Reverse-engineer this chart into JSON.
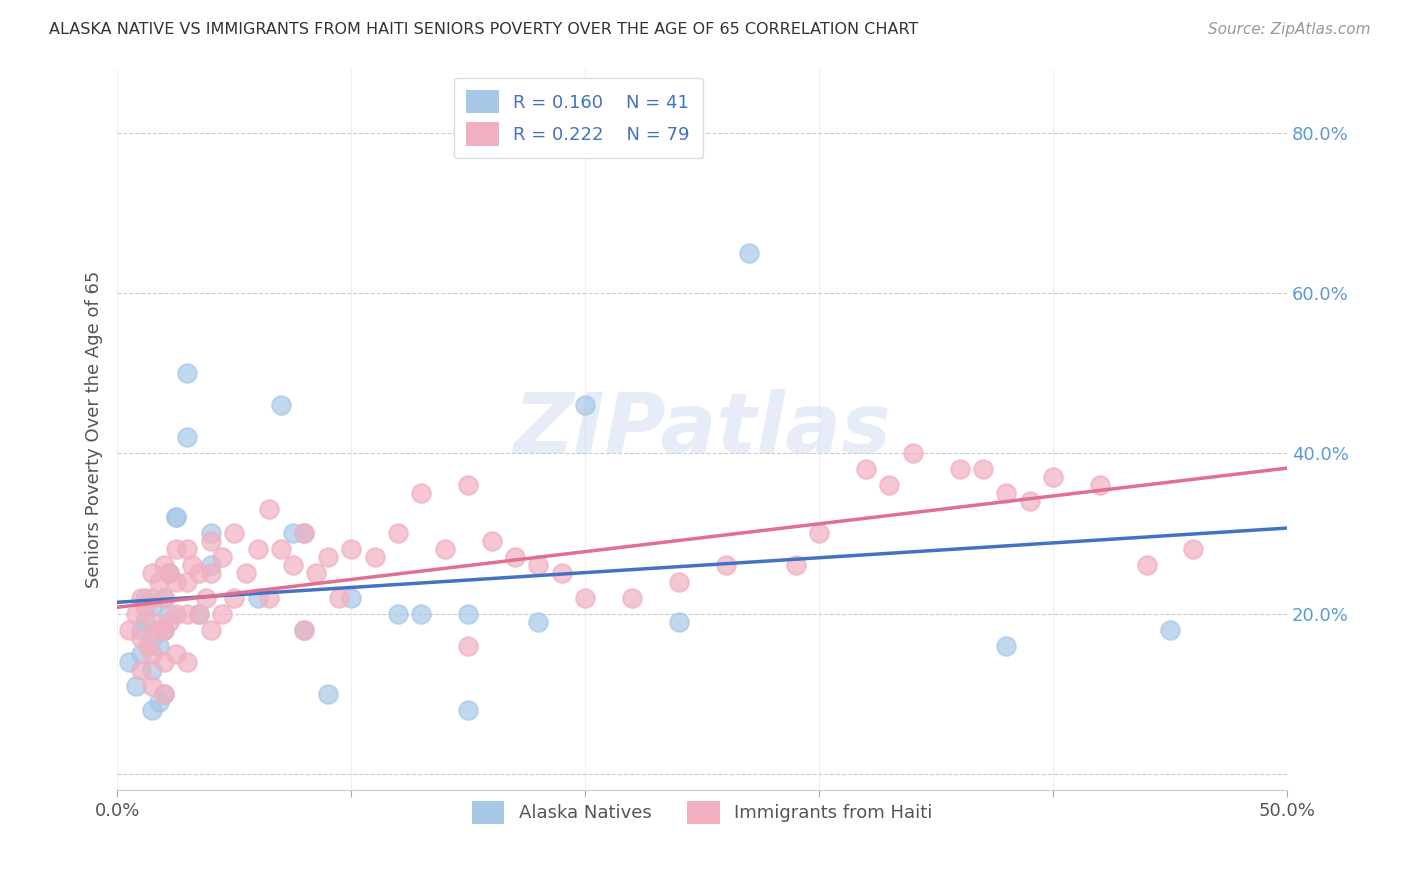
{
  "title": "ALASKA NATIVE VS IMMIGRANTS FROM HAITI SENIORS POVERTY OVER THE AGE OF 65 CORRELATION CHART",
  "source": "Source: ZipAtlas.com",
  "ylabel": "Seniors Poverty Over the Age of 65",
  "xlim": [
    0.0,
    0.5
  ],
  "ylim": [
    -0.02,
    0.88
  ],
  "ytick_vals": [
    0.0,
    0.2,
    0.4,
    0.6,
    0.8
  ],
  "ytick_labels": [
    "",
    "20.0%",
    "40.0%",
    "60.0%",
    "80.0%"
  ],
  "xtick_vals": [
    0.0,
    0.1,
    0.2,
    0.3,
    0.4,
    0.5
  ],
  "xtick_labels": [
    "0.0%",
    "",
    "",
    "",
    "",
    "50.0%"
  ],
  "blue_scatter_color": "#a8c8e8",
  "pink_scatter_color": "#f0b0c0",
  "blue_line_color": "#4472c4",
  "pink_line_color": "#e07090",
  "ytick_color": "#5b9bd5",
  "R_blue": 0.16,
  "N_blue": 41,
  "R_pink": 0.222,
  "N_pink": 79,
  "watermark": "ZIPatlas",
  "alaska_x": [
    0.005,
    0.008,
    0.01,
    0.01,
    0.012,
    0.012,
    0.015,
    0.015,
    0.015,
    0.015,
    0.018,
    0.018,
    0.02,
    0.02,
    0.02,
    0.022,
    0.022,
    0.025,
    0.025,
    0.03,
    0.03,
    0.035,
    0.04,
    0.04,
    0.06,
    0.07,
    0.075,
    0.08,
    0.08,
    0.09,
    0.1,
    0.12,
    0.13,
    0.15,
    0.15,
    0.18,
    0.2,
    0.24,
    0.27,
    0.38,
    0.45
  ],
  "alaska_y": [
    0.14,
    0.11,
    0.18,
    0.15,
    0.22,
    0.19,
    0.21,
    0.17,
    0.13,
    0.08,
    0.16,
    0.09,
    0.22,
    0.18,
    0.1,
    0.25,
    0.2,
    0.32,
    0.32,
    0.42,
    0.5,
    0.2,
    0.3,
    0.26,
    0.22,
    0.46,
    0.3,
    0.3,
    0.18,
    0.1,
    0.22,
    0.2,
    0.2,
    0.2,
    0.08,
    0.19,
    0.46,
    0.19,
    0.65,
    0.16,
    0.18
  ],
  "haiti_x": [
    0.005,
    0.008,
    0.01,
    0.01,
    0.01,
    0.012,
    0.013,
    0.015,
    0.015,
    0.015,
    0.015,
    0.015,
    0.018,
    0.018,
    0.02,
    0.02,
    0.02,
    0.02,
    0.02,
    0.022,
    0.022,
    0.025,
    0.025,
    0.025,
    0.025,
    0.03,
    0.03,
    0.03,
    0.03,
    0.032,
    0.035,
    0.035,
    0.038,
    0.04,
    0.04,
    0.04,
    0.045,
    0.045,
    0.05,
    0.05,
    0.055,
    0.06,
    0.065,
    0.065,
    0.07,
    0.075,
    0.08,
    0.08,
    0.085,
    0.09,
    0.095,
    0.1,
    0.11,
    0.12,
    0.13,
    0.14,
    0.15,
    0.15,
    0.16,
    0.17,
    0.18,
    0.19,
    0.2,
    0.22,
    0.24,
    0.26,
    0.29,
    0.3,
    0.32,
    0.33,
    0.34,
    0.36,
    0.37,
    0.38,
    0.39,
    0.4,
    0.42,
    0.44,
    0.46
  ],
  "haiti_y": [
    0.18,
    0.2,
    0.22,
    0.17,
    0.13,
    0.21,
    0.16,
    0.25,
    0.22,
    0.19,
    0.15,
    0.11,
    0.24,
    0.18,
    0.26,
    0.22,
    0.18,
    0.14,
    0.1,
    0.25,
    0.19,
    0.28,
    0.24,
    0.2,
    0.15,
    0.28,
    0.24,
    0.2,
    0.14,
    0.26,
    0.25,
    0.2,
    0.22,
    0.29,
    0.25,
    0.18,
    0.27,
    0.2,
    0.3,
    0.22,
    0.25,
    0.28,
    0.33,
    0.22,
    0.28,
    0.26,
    0.3,
    0.18,
    0.25,
    0.27,
    0.22,
    0.28,
    0.27,
    0.3,
    0.35,
    0.28,
    0.36,
    0.16,
    0.29,
    0.27,
    0.26,
    0.25,
    0.22,
    0.22,
    0.24,
    0.26,
    0.26,
    0.3,
    0.38,
    0.36,
    0.4,
    0.38,
    0.38,
    0.35,
    0.34,
    0.37,
    0.36,
    0.26,
    0.28
  ]
}
